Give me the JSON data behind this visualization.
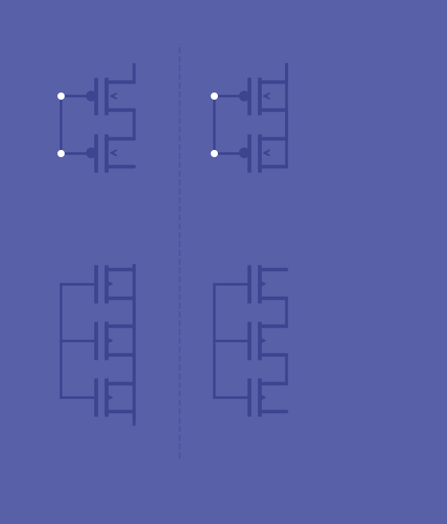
{
  "bg_color": "#5860a8",
  "mosfet_body_color": "#3d4490",
  "mosfet_light_color": "#7880c0",
  "wire_color": "#3d4490",
  "gate_dot_color": "#ffffff",
  "fig_width": 5.6,
  "fig_height": 6.57,
  "dpi": 100
}
